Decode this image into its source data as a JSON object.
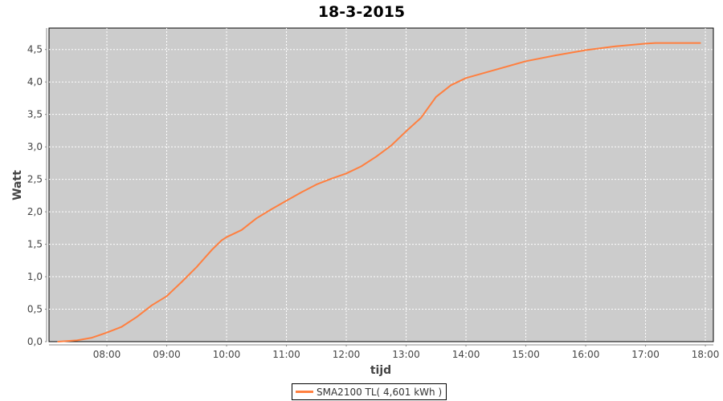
{
  "chart_data": {
    "type": "line",
    "title": "18-3-2015",
    "xlabel": "tijd",
    "ylabel": "Watt",
    "x_tick_labels": [
      "08:00",
      "09:00",
      "10:00",
      "11:00",
      "12:00",
      "13:00",
      "14:00",
      "15:00",
      "16:00",
      "17:00",
      "18:00"
    ],
    "y_tick_labels": [
      "0,0",
      "0,5",
      "1,0",
      "1,5",
      "2,0",
      "2,5",
      "3,0",
      "3,5",
      "4,0",
      "4,5"
    ],
    "xlim": [
      "07:02",
      "18:08"
    ],
    "ylim": [
      0,
      4.83
    ],
    "grid": true,
    "legend_position": "bottom",
    "plot_background": "#cccccc",
    "series": [
      {
        "name": "SMA2100 TL( 4,601 kWh )",
        "color": "#ff7f3f",
        "x": [
          "07:11",
          "07:30",
          "07:45",
          "08:00",
          "08:15",
          "08:30",
          "08:45",
          "09:00",
          "09:15",
          "09:30",
          "09:45",
          "09:55",
          "10:00",
          "10:15",
          "10:30",
          "10:45",
          "11:00",
          "11:15",
          "11:30",
          "11:45",
          "12:00",
          "12:15",
          "12:30",
          "12:45",
          "13:00",
          "13:15",
          "13:30",
          "13:45",
          "14:00",
          "14:30",
          "15:00",
          "15:30",
          "16:00",
          "16:30",
          "17:00",
          "17:10",
          "17:30",
          "17:55"
        ],
        "y": [
          0.0,
          0.02,
          0.06,
          0.14,
          0.23,
          0.38,
          0.56,
          0.7,
          0.92,
          1.15,
          1.41,
          1.56,
          1.61,
          1.72,
          1.9,
          2.04,
          2.17,
          2.3,
          2.42,
          2.51,
          2.59,
          2.7,
          2.85,
          3.02,
          3.24,
          3.45,
          3.77,
          3.95,
          4.06,
          4.19,
          4.32,
          4.41,
          4.49,
          4.55,
          4.59,
          4.6,
          4.6,
          4.6
        ]
      }
    ]
  }
}
